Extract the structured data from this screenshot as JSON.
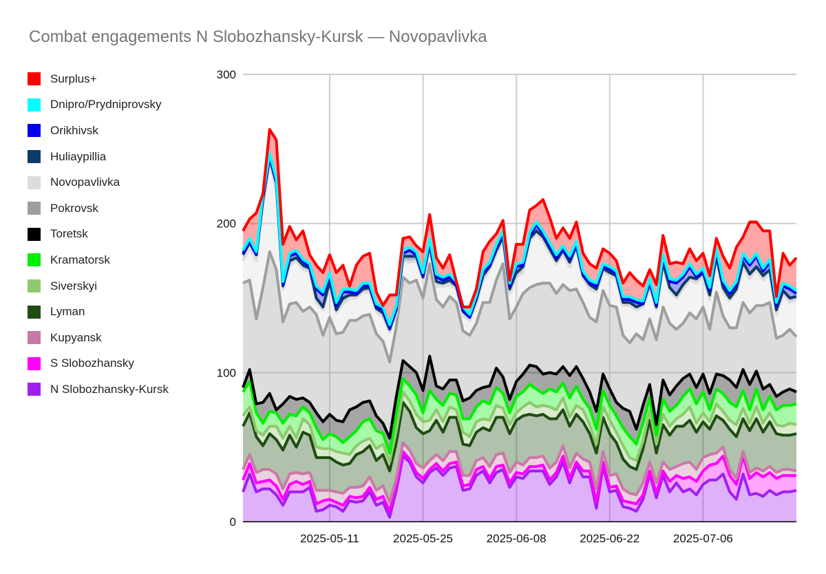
{
  "chart_data": {
    "type": "area",
    "stacked": true,
    "title": "Combat engagements N Slobozhansky-Kursk — Novopavlivka",
    "xlabel": "",
    "ylabel": "",
    "ylim": [
      0,
      300
    ],
    "yticks": [
      0,
      100,
      200,
      300
    ],
    "x_start": "2025-04-28",
    "x_end": "2025-07-20",
    "xtick_labels": [
      "2025-05-11",
      "2025-05-25",
      "2025-06-08",
      "2025-06-22",
      "2025-07-06"
    ],
    "xtick_days": [
      13,
      27,
      41,
      55,
      69
    ],
    "series": [
      {
        "name": "N Slobozhansky-Kursk",
        "color": "#a020f0",
        "values": [
          20,
          32,
          20,
          22,
          22,
          18,
          11,
          20,
          20,
          20,
          23,
          7,
          8,
          11,
          10,
          7,
          14,
          13,
          14,
          20,
          11,
          13,
          3,
          21,
          44,
          40,
          30,
          26,
          33,
          36,
          31,
          36,
          37,
          21,
          22,
          31,
          34,
          26,
          33,
          35,
          23,
          30,
          29,
          34,
          34,
          34,
          25,
          30,
          40,
          26,
          38,
          30,
          30,
          9,
          37,
          20,
          21,
          10,
          9,
          7,
          15,
          32,
          16,
          31,
          20,
          26,
          20,
          22,
          18,
          25,
          28,
          28,
          32,
          20,
          15,
          32,
          18,
          19,
          17,
          21,
          18,
          20,
          20,
          21
        ]
      },
      {
        "name": "S Slobozhansky",
        "color": "#ff00ff",
        "values": [
          8,
          7,
          6,
          5,
          6,
          6,
          4,
          5,
          7,
          5,
          4,
          5,
          6,
          4,
          3,
          4,
          3,
          3,
          3,
          3,
          4,
          4,
          4,
          3,
          3,
          2,
          3,
          3,
          2,
          3,
          3,
          3,
          3,
          3,
          3,
          4,
          3,
          3,
          4,
          3,
          3,
          3,
          3,
          3,
          3,
          4,
          3,
          3,
          4,
          3,
          2,
          4,
          4,
          4,
          3,
          3,
          3,
          4,
          4,
          5,
          3,
          2,
          3,
          3,
          7,
          5,
          9,
          8,
          9,
          9,
          10,
          11,
          12,
          11,
          10,
          12,
          11,
          14,
          13,
          12,
          11,
          11,
          11,
          10
        ]
      },
      {
        "name": "Kupyansk",
        "color": "#c87aa6",
        "values": [
          7,
          6,
          7,
          8,
          7,
          8,
          7,
          7,
          6,
          7,
          6,
          9,
          7,
          6,
          7,
          8,
          6,
          7,
          7,
          7,
          6,
          7,
          6,
          5,
          6,
          6,
          6,
          7,
          6,
          6,
          7,
          8,
          7,
          7,
          6,
          6,
          6,
          8,
          8,
          8,
          7,
          7,
          6,
          6,
          6,
          6,
          8,
          7,
          7,
          7,
          6,
          8,
          6,
          9,
          7,
          8,
          8,
          8,
          6,
          6,
          8,
          6,
          7,
          6,
          8,
          6,
          10,
          10,
          8,
          9,
          7,
          7,
          6,
          4,
          4,
          3,
          4,
          3,
          4,
          4,
          4,
          4,
          4,
          3
        ]
      },
      {
        "name": "Lyman",
        "color": "#1e4c12",
        "values": [
          29,
          28,
          24,
          16,
          24,
          23,
          26,
          26,
          17,
          28,
          25,
          22,
          22,
          22,
          20,
          19,
          16,
          22,
          23,
          21,
          20,
          21,
          21,
          24,
          27,
          26,
          24,
          23,
          20,
          23,
          19,
          23,
          23,
          21,
          20,
          19,
          20,
          24,
          25,
          24,
          26,
          28,
          33,
          29,
          28,
          28,
          33,
          29,
          24,
          28,
          26,
          25,
          19,
          24,
          23,
          28,
          21,
          20,
          18,
          17,
          23,
          28,
          20,
          25,
          23,
          27,
          25,
          28,
          25,
          24,
          17,
          25,
          18,
          27,
          28,
          22,
          28,
          33,
          26,
          30,
          26,
          23,
          23,
          25
        ]
      },
      {
        "name": "Siverskyi",
        "color": "#8ec96f",
        "values": [
          7,
          4,
          4,
          7,
          5,
          9,
          8,
          6,
          6,
          9,
          7,
          7,
          6,
          6,
          7,
          8,
          6,
          6,
          7,
          5,
          8,
          7,
          6,
          8,
          7,
          7,
          9,
          8,
          7,
          7,
          7,
          7,
          5,
          8,
          6,
          7,
          6,
          7,
          8,
          6,
          6,
          5,
          6,
          8,
          6,
          6,
          8,
          6,
          8,
          6,
          6,
          8,
          6,
          6,
          7,
          9,
          7,
          9,
          6,
          6,
          5,
          7,
          6,
          7,
          6,
          5,
          8,
          9,
          6,
          6,
          5,
          8,
          6,
          6,
          8,
          7,
          5,
          8,
          6,
          6,
          6,
          6,
          8,
          6
        ]
      },
      {
        "name": "Kramatorsk",
        "color": "#00ee00",
        "values": [
          16,
          17,
          12,
          8,
          10,
          9,
          10,
          8,
          15,
          8,
          8,
          13,
          6,
          10,
          10,
          7,
          12,
          10,
          13,
          13,
          12,
          7,
          6,
          11,
          9,
          10,
          13,
          6,
          20,
          7,
          11,
          9,
          10,
          9,
          12,
          10,
          12,
          11,
          12,
          10,
          8,
          11,
          10,
          12,
          12,
          8,
          12,
          12,
          10,
          13,
          13,
          7,
          11,
          10,
          11,
          10,
          11,
          12,
          14,
          11,
          12,
          8,
          6,
          10,
          10,
          9,
          12,
          12,
          13,
          14,
          8,
          10,
          12,
          12,
          12,
          12,
          9,
          12,
          9,
          11,
          10,
          14,
          12,
          14
        ]
      },
      {
        "name": "Toretsk",
        "color": "#000000",
        "values": [
          3,
          8,
          6,
          14,
          12,
          2,
          13,
          12,
          11,
          6,
          7,
          10,
          12,
          13,
          11,
          14,
          18,
          16,
          13,
          12,
          10,
          7,
          10,
          12,
          12,
          13,
          15,
          15,
          23,
          9,
          11,
          9,
          10,
          12,
          14,
          11,
          9,
          12,
          13,
          11,
          9,
          10,
          12,
          13,
          15,
          13,
          11,
          12,
          11,
          15,
          13,
          14,
          11,
          12,
          11,
          11,
          9,
          13,
          17,
          10,
          12,
          9,
          7,
          13,
          11,
          13,
          12,
          10,
          11,
          12,
          11,
          10,
          12,
          15,
          13,
          14,
          17,
          12,
          14,
          8,
          9,
          9,
          11,
          8
        ]
      },
      {
        "name": "Pokrovsk",
        "color": "#9e9e9e",
        "values": [
          70,
          60,
          57,
          77,
          95,
          94,
          55,
          62,
          65,
          58,
          64,
          66,
          58,
          65,
          58,
          60,
          60,
          58,
          58,
          58,
          55,
          55,
          51,
          47,
          56,
          56,
          62,
          62,
          62,
          58,
          55,
          56,
          52,
          47,
          42,
          45,
          57,
          56,
          59,
          76,
          54,
          50,
          54,
          52,
          55,
          61,
          60,
          54,
          55,
          57,
          52,
          51,
          50,
          60,
          56,
          56,
          64,
          49,
          46,
          64,
          44,
          44,
          57,
          49,
          48,
          38,
          37,
          41,
          46,
          45,
          43,
          55,
          40,
          35,
          40,
          45,
          48,
          44,
          56,
          55,
          39,
          38,
          40,
          37
        ]
      },
      {
        "name": "Novopavlivka",
        "color": "#dcdcdc",
        "values": [
          15,
          22,
          39,
          56,
          61,
          53,
          22,
          26,
          28,
          28,
          24,
          8,
          17,
          21,
          14,
          19,
          15,
          15,
          16,
          15,
          15,
          16,
          20,
          8,
          11,
          14,
          13,
          12,
          9,
          9,
          14,
          8,
          9,
          10,
          10,
          13,
          15,
          22,
          17,
          15,
          17,
          20,
          14,
          31,
          34,
          28,
          20,
          20,
          20,
          16,
          27,
          16,
          19,
          20,
          12,
          20,
          18,
          20,
          25,
          16,
          22,
          21,
          20,
          27,
          22,
          21,
          23,
          22,
          24,
          20,
          20,
          22,
          16,
          18,
          24,
          24,
          23,
          24,
          17,
          20,
          16,
          28,
          18,
          25
        ]
      },
      {
        "name": "Huliaypillia",
        "color": "#0d3a66",
        "values": [
          4,
          3,
          4,
          3,
          2,
          5,
          2,
          3,
          2,
          3,
          2,
          3,
          2,
          3,
          2,
          4,
          2,
          2,
          2,
          3,
          2,
          3,
          2,
          3,
          3,
          4,
          3,
          2,
          4,
          3,
          2,
          3,
          2,
          3,
          2,
          3,
          3,
          2,
          3,
          3,
          3,
          3,
          4,
          2,
          2,
          3,
          3,
          2,
          3,
          3,
          2,
          2,
          3,
          2,
          3,
          2,
          3,
          2,
          2,
          2,
          2,
          3,
          2,
          3,
          2,
          2,
          3,
          2,
          3,
          3,
          3,
          2,
          3,
          2,
          2,
          3,
          3,
          2,
          3,
          2,
          3,
          2,
          3,
          2
        ]
      },
      {
        "name": "Orikhivsk",
        "color": "#0000ee",
        "values": [
          1,
          1,
          0,
          2,
          1,
          1,
          1,
          3,
          3,
          2,
          1,
          6,
          8,
          4,
          3,
          4,
          2,
          1,
          2,
          1,
          1,
          2,
          1,
          1,
          2,
          4,
          1,
          1,
          2,
          3,
          2,
          2,
          1,
          1,
          0,
          1,
          2,
          1,
          2,
          2,
          2,
          4,
          1,
          2,
          4,
          2,
          2,
          2,
          1,
          2,
          1,
          1,
          1,
          2,
          1,
          2,
          1,
          2,
          2,
          3,
          0,
          1,
          1,
          3,
          4,
          8,
          5,
          7,
          1,
          1,
          3,
          3,
          3,
          3,
          3,
          4,
          6,
          7,
          3,
          5,
          3,
          3,
          6,
          2
        ]
      },
      {
        "name": "Dnipro/Prydniprovsky",
        "color": "#00ffff",
        "values": [
          2,
          2,
          2,
          2,
          2,
          2,
          2,
          2,
          2,
          2,
          2,
          2,
          2,
          2,
          2,
          2,
          2,
          2,
          2,
          2,
          2,
          2,
          2,
          2,
          3,
          2,
          2,
          2,
          2,
          2,
          2,
          2,
          2,
          2,
          2,
          2,
          2,
          2,
          2,
          2,
          2,
          2,
          2,
          2,
          2,
          2,
          2,
          2,
          2,
          2,
          2,
          2,
          2,
          2,
          2,
          2,
          2,
          2,
          2,
          2,
          2,
          2,
          2,
          2,
          2,
          2,
          2,
          2,
          2,
          2,
          2,
          2,
          2,
          2,
          2,
          2,
          2,
          2,
          2,
          2,
          2,
          2,
          2,
          2
        ]
      },
      {
        "name": "Surplus+",
        "color": "#ff0000",
        "values": [
          13,
          13,
          26,
          0,
          16,
          26,
          25,
          18,
          7,
          19,
          6,
          14,
          13,
          12,
          20,
          16,
          2,
          17,
          18,
          20,
          8,
          1,
          20,
          7,
          7,
          7,
          4,
          14,
          16,
          11,
          6,
          13,
          0,
          0,
          5,
          4,
          12,
          14,
          7,
          7,
          2,
          13,
          12,
          15,
          11,
          21,
          17,
          11,
          12,
          12,
          13,
          12,
          11,
          10,
          10,
          9,
          7,
          9,
          16,
          13,
          10,
          6,
          12,
          13,
          10,
          12,
          7,
          10,
          9,
          10,
          8,
          7,
          16,
          15,
          23,
          11,
          27,
          21,
          25,
          19,
          4,
          20,
          14,
          22
        ]
      }
    ]
  }
}
